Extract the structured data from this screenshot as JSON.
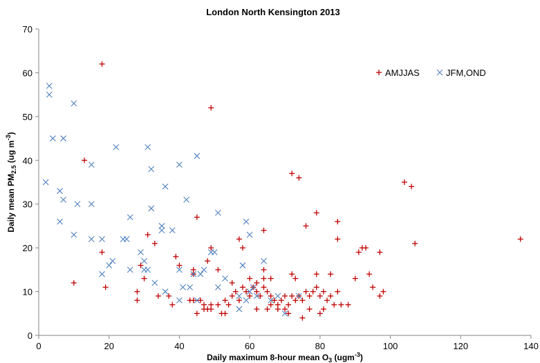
{
  "chart_data": {
    "type": "scatter",
    "title": "London North Kensington 2013",
    "xlabel": {
      "main": "Daily maximum 8-hour mean O",
      "sub": "3",
      "unit_pre": " (ugm",
      "unit_sup": "-3",
      "unit_post": ")"
    },
    "ylabel": {
      "main": "Daily mean PM",
      "sub": "2.5",
      "unit_pre": " (ug m",
      "unit_sup": "-3",
      "unit_post": ")"
    },
    "xlim": [
      0,
      140
    ],
    "ylim": [
      0,
      70
    ],
    "xticks": [
      0,
      20,
      40,
      60,
      80,
      100,
      120,
      140
    ],
    "yticks": [
      0,
      10,
      20,
      30,
      40,
      50,
      60,
      70
    ],
    "grid": false,
    "legend_position": "top-right",
    "series": [
      {
        "name": "AMJJAS",
        "marker": "+",
        "color": "#c00000",
        "points": [
          [
            18,
            62
          ],
          [
            49,
            52
          ],
          [
            13,
            40
          ],
          [
            72,
            37
          ],
          [
            74,
            36
          ],
          [
            104,
            35
          ],
          [
            106,
            34
          ],
          [
            79,
            28
          ],
          [
            45,
            27
          ],
          [
            85,
            26
          ],
          [
            76,
            25
          ],
          [
            64,
            24
          ],
          [
            31,
            23
          ],
          [
            57,
            22
          ],
          [
            85,
            22
          ],
          [
            137,
            22
          ],
          [
            33,
            21
          ],
          [
            107,
            21
          ],
          [
            49,
            20
          ],
          [
            58,
            20
          ],
          [
            92,
            20
          ],
          [
            93,
            20
          ],
          [
            18,
            19
          ],
          [
            91,
            19
          ],
          [
            97,
            19
          ],
          [
            39,
            18
          ],
          [
            48,
            17
          ],
          [
            29,
            16
          ],
          [
            40,
            16
          ],
          [
            44,
            15
          ],
          [
            51,
            15
          ],
          [
            64,
            15
          ],
          [
            19,
            11
          ],
          [
            10,
            12
          ],
          [
            55,
            12
          ],
          [
            62,
            12
          ],
          [
            44,
            14
          ],
          [
            72,
            14
          ],
          [
            79,
            14
          ],
          [
            83,
            14
          ],
          [
            94,
            14
          ],
          [
            30,
            13
          ],
          [
            66,
            13
          ],
          [
            60,
            13
          ],
          [
            90,
            13
          ],
          [
            64,
            13
          ],
          [
            73,
            13
          ],
          [
            28,
            10
          ],
          [
            34,
            9
          ],
          [
            37,
            9
          ],
          [
            28,
            8
          ],
          [
            44,
            8
          ],
          [
            43,
            8
          ],
          [
            46,
            8
          ],
          [
            47,
            7
          ],
          [
            49,
            7
          ],
          [
            51,
            7
          ],
          [
            54,
            7
          ],
          [
            38,
            7
          ],
          [
            53,
            8
          ],
          [
            55,
            9
          ],
          [
            57,
            8
          ],
          [
            59,
            10
          ],
          [
            60,
            9
          ],
          [
            61,
            11
          ],
          [
            62,
            10
          ],
          [
            63,
            9
          ],
          [
            64,
            11
          ],
          [
            65,
            10
          ],
          [
            66,
            9
          ],
          [
            67,
            8
          ],
          [
            68,
            7
          ],
          [
            69,
            8
          ],
          [
            70,
            9
          ],
          [
            71,
            7
          ],
          [
            72,
            9
          ],
          [
            73,
            8
          ],
          [
            74,
            9
          ],
          [
            75,
            8
          ],
          [
            76,
            10
          ],
          [
            77,
            9
          ],
          [
            78,
            10
          ],
          [
            79,
            11
          ],
          [
            80,
            9
          ],
          [
            81,
            10
          ],
          [
            82,
            8
          ],
          [
            83,
            9
          ],
          [
            84,
            7
          ],
          [
            85,
            10
          ],
          [
            86,
            7
          ],
          [
            88,
            7
          ],
          [
            95,
            11
          ],
          [
            97,
            9
          ],
          [
            98,
            10
          ],
          [
            45,
            5
          ],
          [
            52,
            5
          ],
          [
            49,
            6
          ],
          [
            47,
            6
          ],
          [
            48,
            6
          ],
          [
            62,
            6
          ],
          [
            65,
            6
          ],
          [
            66,
            7
          ],
          [
            68,
            6
          ],
          [
            70,
            6
          ],
          [
            71,
            5
          ],
          [
            75,
            4
          ],
          [
            77,
            6
          ],
          [
            80,
            5
          ],
          [
            81,
            6
          ],
          [
            53,
            5
          ],
          [
            56,
            10
          ],
          [
            58,
            11
          ]
        ]
      },
      {
        "name": "JFM,OND",
        "marker": "x",
        "color": "#4f81bd",
        "points": [
          [
            3,
            57
          ],
          [
            3,
            55
          ],
          [
            10,
            53
          ],
          [
            4,
            45
          ],
          [
            7,
            45
          ],
          [
            22,
            43
          ],
          [
            31,
            43
          ],
          [
            45,
            41
          ],
          [
            15,
            39
          ],
          [
            40,
            39
          ],
          [
            32,
            38
          ],
          [
            2,
            35
          ],
          [
            36,
            34
          ],
          [
            6,
            33
          ],
          [
            7,
            31
          ],
          [
            42,
            31
          ],
          [
            11,
            30
          ],
          [
            15,
            30
          ],
          [
            32,
            29
          ],
          [
            51,
            28
          ],
          [
            26,
            27
          ],
          [
            6,
            26
          ],
          [
            59,
            26
          ],
          [
            35,
            25
          ],
          [
            35,
            24
          ],
          [
            38,
            24
          ],
          [
            10,
            23
          ],
          [
            60,
            23
          ],
          [
            15,
            22
          ],
          [
            18,
            22
          ],
          [
            24,
            22
          ],
          [
            25,
            22
          ],
          [
            49,
            19
          ],
          [
            50,
            19
          ],
          [
            29,
            19
          ],
          [
            21,
            17
          ],
          [
            20,
            16
          ],
          [
            58,
            16
          ],
          [
            30,
            17
          ],
          [
            64,
            17
          ],
          [
            31,
            15
          ],
          [
            26,
            15
          ],
          [
            30,
            15
          ],
          [
            40,
            15
          ],
          [
            47,
            15
          ],
          [
            18,
            14
          ],
          [
            44,
            14
          ],
          [
            46,
            14
          ],
          [
            33,
            12
          ],
          [
            53,
            13
          ],
          [
            36,
            10
          ],
          [
            41,
            11
          ],
          [
            43,
            11
          ],
          [
            51,
            11
          ],
          [
            61,
            11
          ],
          [
            40,
            8
          ],
          [
            45,
            8
          ],
          [
            57,
            9
          ],
          [
            60,
            10
          ],
          [
            59,
            8
          ],
          [
            62,
            9
          ],
          [
            66,
            8
          ],
          [
            68,
            9
          ],
          [
            57,
            6
          ],
          [
            70,
            5
          ],
          [
            74,
            9
          ],
          [
            58,
            16
          ]
        ]
      }
    ]
  }
}
